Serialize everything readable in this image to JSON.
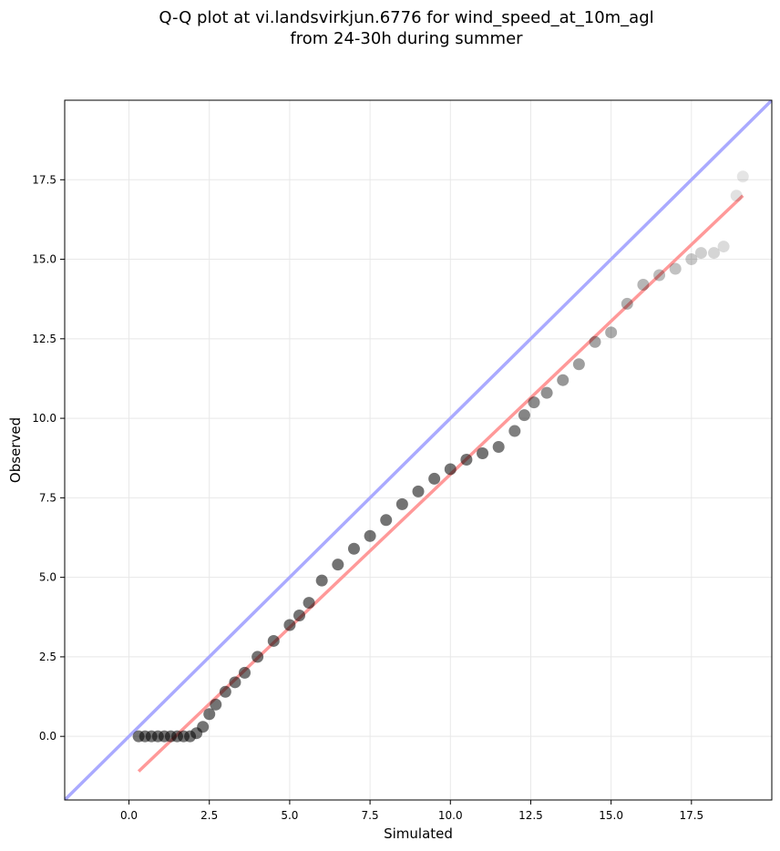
{
  "chart_data": {
    "type": "scatter",
    "title": "Q-Q plot at vi.landsvirkjun.6776 for wind_speed_at_10m_agl",
    "subtitle": "from 24-30h during summer",
    "xlabel": "Simulated",
    "ylabel": "Observed",
    "xlim": [
      -2.0,
      20.0
    ],
    "ylim": [
      -2.0,
      20.0
    ],
    "xticks": [
      0.0,
      2.5,
      5.0,
      7.5,
      10.0,
      12.5,
      15.0,
      17.5
    ],
    "xtick_labels": [
      "0.0",
      "2.5",
      "5.0",
      "7.5",
      "10.0",
      "12.5",
      "15.0",
      "17.5"
    ],
    "yticks": [
      0.0,
      2.5,
      5.0,
      7.5,
      10.0,
      12.5,
      15.0,
      17.5
    ],
    "ytick_labels": [
      "0.0",
      "2.5",
      "5.0",
      "7.5",
      "10.0",
      "12.5",
      "15.0",
      "17.5"
    ],
    "grid": true,
    "identity_line": {
      "x": [
        -2.0,
        20.0
      ],
      "y": [
        -2.0,
        20.0
      ],
      "color": "#aaaaff"
    },
    "fit_line": {
      "x": [
        0.3,
        19.1
      ],
      "y": [
        -1.1,
        17.0
      ],
      "color": "#ff9999"
    },
    "point_color": "#000000",
    "series": [
      {
        "x": [
          0.3,
          0.5,
          0.7,
          0.9,
          1.1,
          1.3,
          1.5,
          1.7,
          1.9,
          2.1,
          2.3,
          2.5,
          2.7,
          3.0,
          3.3,
          3.6,
          4.0,
          4.5,
          5.0,
          5.3,
          5.6,
          6.0,
          6.5,
          7.0,
          7.5,
          8.0,
          8.5,
          9.0,
          9.5,
          10.0,
          10.5,
          11.0,
          11.5,
          12.0,
          12.3,
          12.6,
          13.0,
          13.5,
          14.0,
          14.5,
          15.0,
          15.5,
          16.0,
          16.5,
          17.0,
          17.5,
          17.8,
          18.2,
          18.5,
          18.9,
          19.1
        ],
        "y": [
          0.0,
          0.0,
          0.0,
          0.0,
          0.0,
          0.0,
          0.0,
          0.0,
          0.0,
          0.1,
          0.3,
          0.7,
          1.0,
          1.4,
          1.7,
          2.0,
          2.5,
          3.0,
          3.5,
          3.8,
          4.2,
          4.9,
          5.4,
          5.9,
          6.3,
          6.8,
          7.3,
          7.7,
          8.1,
          8.4,
          8.7,
          8.9,
          9.1,
          9.6,
          10.1,
          10.5,
          10.8,
          11.2,
          11.7,
          12.4,
          12.7,
          13.6,
          14.2,
          14.5,
          14.7,
          15.0,
          15.2,
          15.2,
          15.4,
          17.0,
          17.6
        ]
      }
    ]
  }
}
